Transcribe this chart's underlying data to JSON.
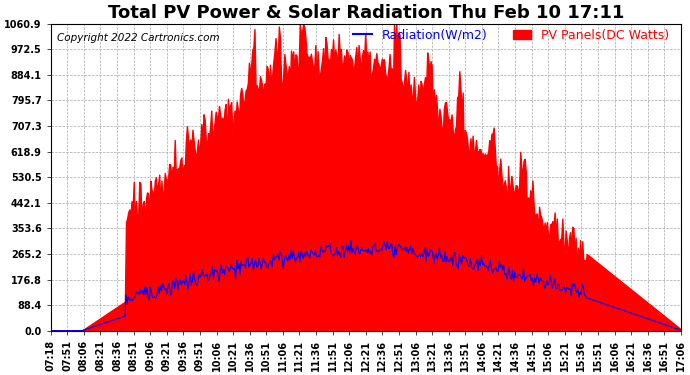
{
  "title": "Total PV Power & Solar Radiation Thu Feb 10 17:11",
  "copyright_text": "Copyright 2022 Cartronics.com",
  "legend_radiation": "Radiation(W/m2)",
  "legend_pv": "PV Panels(DC Watts)",
  "y_max": 1060.9,
  "y_min": 0.0,
  "y_ticks": [
    0.0,
    88.4,
    176.8,
    265.2,
    353.6,
    442.1,
    530.5,
    618.9,
    707.3,
    795.7,
    884.1,
    972.5,
    1060.9
  ],
  "x_labels": [
    "07:18",
    "07:51",
    "08:06",
    "08:21",
    "08:36",
    "08:51",
    "09:06",
    "09:21",
    "09:36",
    "09:51",
    "10:06",
    "10:21",
    "10:36",
    "10:51",
    "11:06",
    "11:21",
    "11:36",
    "11:51",
    "12:06",
    "12:21",
    "12:36",
    "12:51",
    "13:06",
    "13:21",
    "13:36",
    "13:51",
    "14:06",
    "14:21",
    "14:36",
    "14:51",
    "15:06",
    "15:21",
    "15:36",
    "15:51",
    "16:06",
    "16:21",
    "16:36",
    "16:51",
    "17:06"
  ],
  "pv_color": "red",
  "radiation_color": "blue",
  "background_color": "white",
  "grid_color": "#aaaaaa",
  "title_fontsize": 13,
  "copyright_fontsize": 7.5,
  "tick_label_fontsize": 7,
  "legend_fontsize": 9
}
